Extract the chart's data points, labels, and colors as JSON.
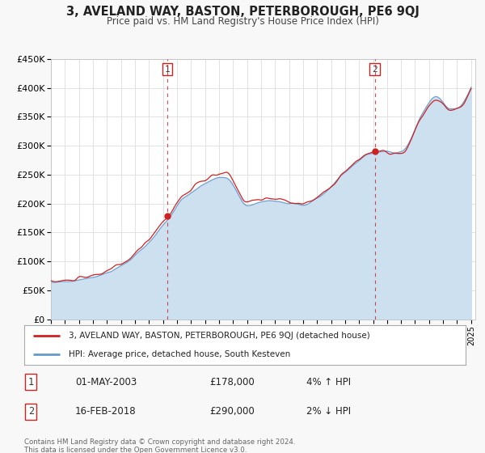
{
  "title": "3, AVELAND WAY, BASTON, PETERBOROUGH, PE6 9QJ",
  "subtitle": "Price paid vs. HM Land Registry's House Price Index (HPI)",
  "bg_color": "#ffffff",
  "fig_color": "#f8f8f8",
  "red_line_label": "3, AVELAND WAY, BASTON, PETERBOROUGH, PE6 9QJ (detached house)",
  "blue_line_label": "HPI: Average price, detached house, South Kesteven",
  "footer": "Contains HM Land Registry data © Crown copyright and database right 2024.\nThis data is licensed under the Open Government Licence v3.0.",
  "ylim": [
    0,
    450000
  ],
  "yticks": [
    0,
    50000,
    100000,
    150000,
    200000,
    250000,
    300000,
    350000,
    400000,
    450000
  ],
  "ytick_labels": [
    "£0",
    "£50K",
    "£100K",
    "£150K",
    "£200K",
    "£250K",
    "£300K",
    "£350K",
    "£400K",
    "£450K"
  ],
  "xlim_start": 1995.0,
  "xlim_end": 2025.3,
  "marker1_x": 2003.33,
  "marker1_y": 178000,
  "marker2_x": 2018.12,
  "marker2_y": 290000,
  "vline1_x": 2003.33,
  "vline2_x": 2018.12,
  "red_color": "#cc2222",
  "blue_color": "#6699cc",
  "blue_fill_color": "#cce0f0",
  "marker_color": "#cc2222",
  "vline_color": "#cc2222",
  "grid_color": "#dddddd",
  "label_box_color": "#cc2222"
}
